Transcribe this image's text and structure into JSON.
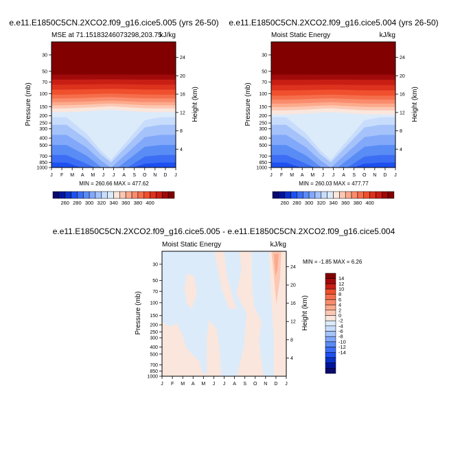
{
  "chart_data": [
    {
      "type": "heatmap",
      "id": "top-left",
      "title": "e.e11.E1850C5CN.2XCO2.f09_g16.cice5.005 (yrs 26-50)",
      "left_subtitle": "MSE at 71.15183246073298,203.75",
      "right_subtitle": "kJ/kg",
      "ylabel": "Pressure (mb)",
      "ylabel_right": "Height (km)",
      "x_tick_labels": [
        "J",
        "F",
        "M",
        "A",
        "M",
        "J",
        "J",
        "A",
        "S",
        "O",
        "N",
        "D",
        "J"
      ],
      "y_ticks": [
        30,
        50,
        70,
        100,
        150,
        200,
        250,
        300,
        400,
        500,
        700,
        850,
        1000
      ],
      "ylim": [
        1000,
        20
      ],
      "height_ticks": [
        4,
        8,
        12,
        16,
        20,
        24
      ],
      "stats": "MIN = 260.66 MAX = 477.62",
      "colorbar_labels": [
        "260",
        "280",
        "300",
        "320",
        "340",
        "360",
        "380",
        "400"
      ],
      "variant": 0
    },
    {
      "type": "heatmap",
      "id": "top-right",
      "title": "e.e11.E1850C5CN.2XCO2.f09_g16.cice5.004 (yrs 26-50)",
      "left_subtitle": "Moist Static Energy",
      "right_subtitle": "kJ/kg",
      "ylabel": "Pressure (mb)",
      "ylabel_right": "Height (km)",
      "x_tick_labels": [
        "J",
        "F",
        "M",
        "A",
        "M",
        "J",
        "J",
        "A",
        "S",
        "O",
        "N",
        "D",
        "J"
      ],
      "y_ticks": [
        30,
        50,
        70,
        100,
        150,
        200,
        250,
        300,
        400,
        500,
        700,
        850,
        1000
      ],
      "ylim": [
        1000,
        20
      ],
      "height_ticks": [
        4,
        8,
        12,
        16,
        20,
        24
      ],
      "stats": "MIN = 260.03 MAX = 477.77",
      "colorbar_labels": [
        "260",
        "280",
        "300",
        "320",
        "340",
        "360",
        "380",
        "400"
      ],
      "variant": 1
    },
    {
      "type": "heatmap",
      "id": "bottom-diff",
      "title": "e.e11.E1850C5CN.2XCO2.f09_g16.cice5.005 - e.e11.E1850C5CN.2XCO2.f09_g16.cice5.004",
      "left_subtitle": "Moist Static Energy",
      "right_subtitle": "kJ/kg",
      "ylabel": "Pressure (mb)",
      "ylabel_right": "Height (km)",
      "x_tick_labels": [
        "J",
        "F",
        "M",
        "A",
        "M",
        "J",
        "J",
        "A",
        "S",
        "O",
        "N",
        "D",
        "J"
      ],
      "y_ticks": [
        30,
        50,
        70,
        100,
        150,
        200,
        250,
        300,
        400,
        500,
        700,
        850,
        1000
      ],
      "ylim": [
        1000,
        20
      ],
      "height_ticks": [
        4,
        8,
        12,
        16,
        20,
        24
      ],
      "stats": "MIN =  -1.85 MAX =   6.26",
      "colorbar_labels": [
        "14",
        "12",
        "10",
        "8",
        "6",
        "4",
        "2",
        "0",
        "-2",
        "-4",
        "-6",
        "-8",
        "-10",
        "-12",
        "-14"
      ]
    }
  ],
  "colors": {
    "full_scale": [
      "#0a0a6e",
      "#00149b",
      "#0a32c8",
      "#1e50f0",
      "#3c6ef5",
      "#5a8cf5",
      "#82a8fa",
      "#a5c3fa",
      "#c8dcfc",
      "#dcebfa",
      "#fae6dc",
      "#fcc8b4",
      "#fcaa8c",
      "#fa8c6e",
      "#f56e4b",
      "#f0502d",
      "#dc321e",
      "#c81e14",
      "#a00a0a",
      "#820000"
    ],
    "diff_scale": [
      "#820000",
      "#a00a0a",
      "#c81e14",
      "#f0502d",
      "#f56e4b",
      "#fa8c6e",
      "#fcaa8c",
      "#fcc8b4",
      "#fae6dc",
      "#dcebfa",
      "#c8dcfc",
      "#a5c3fa",
      "#82a8fa",
      "#5a8cf5",
      "#3c6ef5",
      "#1e50f0",
      "#0a32c8",
      "#00149b",
      "#0a0a6e"
    ]
  }
}
